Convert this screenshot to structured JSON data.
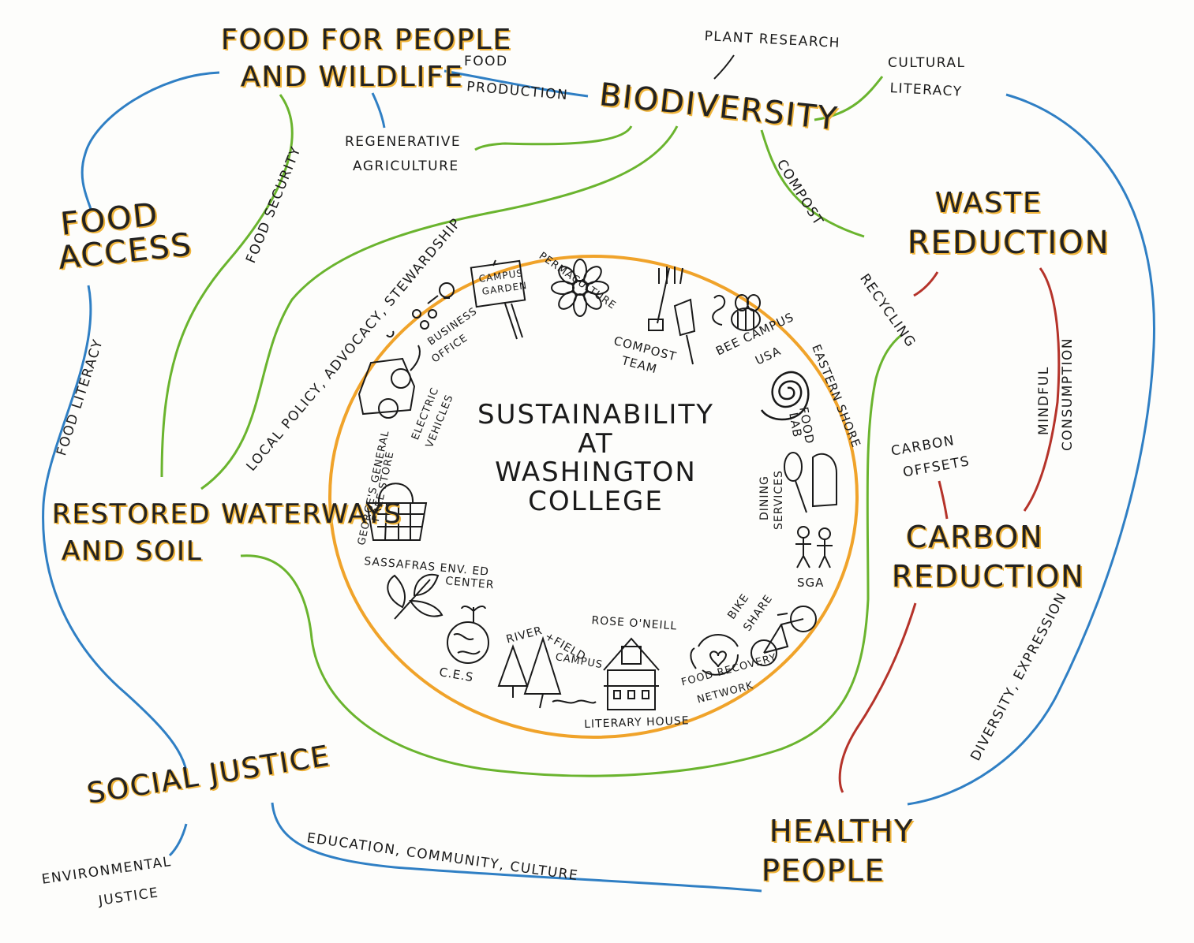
{
  "center": {
    "line1": "SUSTAINABILITY",
    "line2": "AT",
    "line3": "WASHINGTON",
    "line4": "COLLEGE"
  },
  "themes": {
    "food_people_1": "FOOD FOR PEOPLE",
    "food_people_2": "AND WILDLIFE",
    "biodiversity": "BIODIVERSITY",
    "food_access_1": "FOOD",
    "food_access_2": "ACCESS",
    "waste_1": "WASTE",
    "waste_2": "REDUCTION",
    "waterways_1": "RESTORED WATERWAYS",
    "waterways_2": "AND SOIL",
    "carbon_1": "CARBON",
    "carbon_2": "REDUCTION",
    "social_justice": "SOCIAL JUSTICE",
    "healthy_1": "HEALTHY",
    "healthy_2": "PEOPLE"
  },
  "connections": {
    "food_production_1": "FOOD",
    "food_production_2": "PRODUCTION",
    "plant_research": "PLANT RESEARCH",
    "cultural_literacy_1": "CULTURAL",
    "cultural_literacy_2": "LITERACY",
    "regen_ag_1": "REGENERATIVE",
    "regen_ag_2": "AGRICULTURE",
    "food_security": "FOOD SECURITY",
    "compost": "COMPOST",
    "local_policy": "LOCAL POLICY, ADVOCACY, STEWARDSHIP",
    "recycling": "RECYCLING",
    "mindful_1": "MINDFUL",
    "mindful_2": "CONSUMPTION",
    "food_literacy": "FOOD LITERACY",
    "carbon_offsets_1": "CARBON",
    "carbon_offsets_2": "OFFSETS",
    "diversity_expression": "DIVERSITY, EXPRESSION",
    "education_community": "EDUCATION, COMMUNITY, CULTURE",
    "env_justice_1": "ENVIRONMENTAL",
    "env_justice_2": "JUSTICE"
  },
  "programs": {
    "campus_garden_1": "CAMPUS",
    "campus_garden_2": "GARDEN",
    "permaculture": "PERMACULTURE",
    "business_1": "BUSINESS",
    "business_2": "OFFICE",
    "compost_team_1": "COMPOST",
    "compost_team_2": "TEAM",
    "bee_campus_1": "BEE CAMPUS",
    "bee_campus_2": "USA",
    "electric_1": "ELECTRIC",
    "electric_2": "VEHICLES",
    "eastern_shore_1": "EASTERN SHORE",
    "eastern_shore_2": "FOOD",
    "eastern_shore_3": "LAB",
    "georges_1": "GEORGE'S GENERAL",
    "georges_2": "FREE STORE",
    "dining_1": "DINING",
    "dining_2": "SERVICES",
    "sga": "SGA",
    "sassafras_1": "SASSAFRAS ENV. ED",
    "sassafras_2": "CENTER",
    "rose_oneill": "ROSE O'NEILL",
    "bike_share_1": "BIKE",
    "bike_share_2": "SHARE",
    "river_field_1": "RIVER",
    "river_field_2": "+FIELD",
    "river_field_3": "CAMPUS",
    "ces": "C.E.S",
    "food_recovery_1": "FOOD RECOVERY",
    "food_recovery_2": "NETWORK",
    "literary_house": "LITERARY HOUSE"
  },
  "colors": {
    "blue": "#2f7fc4",
    "green": "#6ab42e",
    "red": "#b5332a",
    "orange": "#f0a32a",
    "highlight": "#f0b43a",
    "ink": "#1a1a1a"
  }
}
